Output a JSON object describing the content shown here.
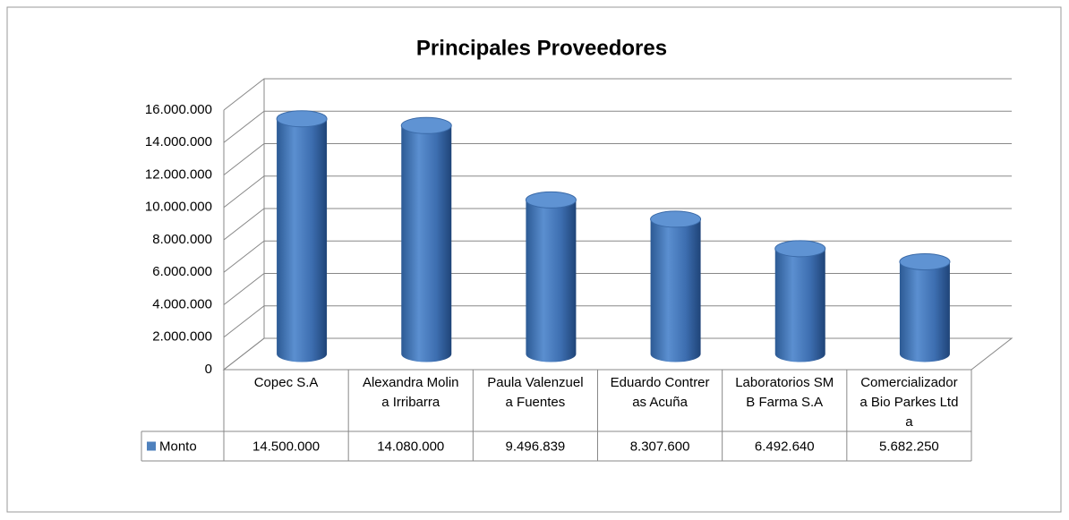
{
  "chart_data": {
    "type": "bar3d",
    "title": "Principales Proveedores",
    "categories": [
      "Copec S.A",
      "Alexandra Molina Irribarra",
      "Paula Valenzuela Fuentes",
      "Eduardo Contreras Acuña",
      "Laboratorios SMB Farma S.A",
      "Comercializadora Bio Parkes Ltda"
    ],
    "series": [
      {
        "name": "Monto",
        "color": "#4f81bd",
        "values": [
          14500000,
          14080000,
          9496839,
          8307600,
          6492640,
          5682250
        ],
        "value_labels": [
          "14.500.000",
          "14.080.000",
          "9.496.839",
          "8.307.600",
          "6.492.640",
          "5.682.250"
        ]
      }
    ],
    "ylim": [
      0,
      16000000
    ],
    "yticks": [
      0,
      {
        "value": 2000000,
        "label": "2.000.000"
      },
      {
        "value": 4000000,
        "label": "4.000.000"
      },
      {
        "value": 6000000,
        "label": "6.000.000"
      },
      {
        "value": 8000000,
        "label": "8.000.000"
      },
      {
        "value": 10000000,
        "label": "10.000.000"
      },
      {
        "value": 12000000,
        "label": "12.000.000"
      },
      {
        "value": 14000000,
        "label": "14.000.000"
      },
      {
        "value": 16000000,
        "label": "16.000.000"
      }
    ],
    "grid": true,
    "data_table": true
  }
}
